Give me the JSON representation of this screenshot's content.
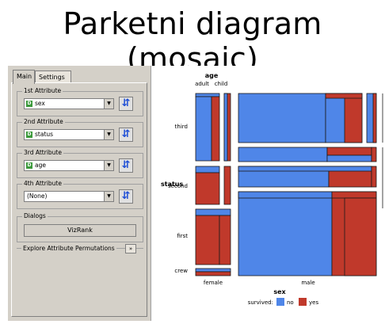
{
  "slide": {
    "title": "Parketni diagram (mosaic)"
  },
  "tabs": [
    {
      "label": "Main"
    },
    {
      "label": "Settings"
    }
  ],
  "attributes": [
    {
      "label": "1st Attribute",
      "value": "sex",
      "icon": "discrete-attr-icon",
      "has_icon": true
    },
    {
      "label": "2nd Attribute",
      "value": "status",
      "icon": "discrete-attr-icon",
      "has_icon": true
    },
    {
      "label": "3rd Attribute",
      "value": "age",
      "icon": "discrete-attr-icon",
      "has_icon": true
    },
    {
      "label": "4th Attribute",
      "value": "(None)",
      "icon": "",
      "has_icon": false
    }
  ],
  "dialogs": {
    "label": "Dialogs",
    "vizrank": "VizRank"
  },
  "permutations": {
    "label": "Explore Attribute Permutations"
  },
  "icons": {
    "discrete_glyph": "D",
    "dropdown_glyph": "▼",
    "swap_glyph": "⇵",
    "expand_glyph": "»"
  },
  "colors": {
    "no": "#4f86e8",
    "yes": "#c0392b"
  },
  "mosaic": {
    "top_attribute": "age",
    "top_values": [
      "adult",
      "child"
    ],
    "left_attribute": "status",
    "left_values": [
      "third",
      "second",
      "first",
      "crew"
    ],
    "bottom_values": [
      "female",
      "male"
    ],
    "legend_title": "sex",
    "legend_label": "survived:",
    "legend_items": [
      {
        "label": "no",
        "color": "#4f86e8"
      },
      {
        "label": "yes",
        "color": "#c0392b"
      }
    ]
  }
}
